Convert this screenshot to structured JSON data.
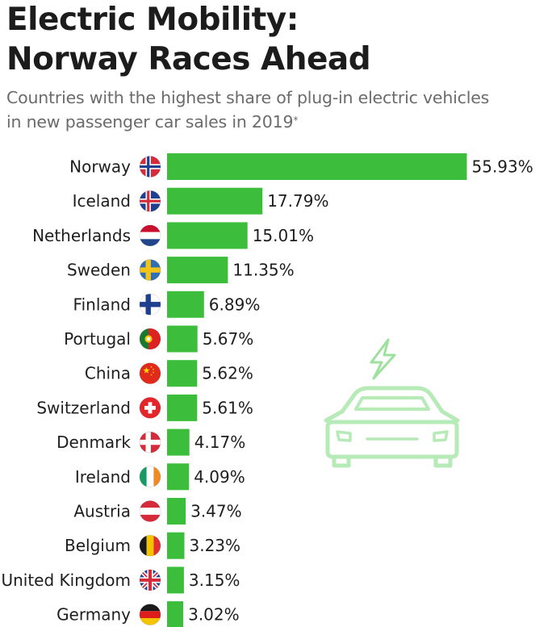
{
  "title_lines": [
    "Electric Mobility:",
    "Norway Races Ahead"
  ],
  "subtitle_lines": [
    "Countries with the highest share of plug-in electric vehicles",
    "in new passenger car sales in 2019"
  ],
  "subtitle_marker": "*",
  "colors": {
    "bar": "#3cbe3c",
    "car_icon": "#b6eab6",
    "bolt_icon": "#9ee09e"
  },
  "icons": {
    "car": "electric-car-icon",
    "bolt": "lightning-bolt-icon"
  },
  "chart_data": {
    "type": "bar",
    "orientation": "horizontal",
    "title": "Electric Mobility: Norway Races Ahead",
    "subtitle": "Countries with the highest share of plug-in electric vehicles in new passenger car sales in 2019*",
    "value_suffix": "%",
    "grid": false,
    "xlim": [
      0,
      56
    ],
    "categories": [
      "Norway",
      "Iceland",
      "Netherlands",
      "Sweden",
      "Finland",
      "Portugal",
      "China",
      "Switzerland",
      "Denmark",
      "Ireland",
      "Austria",
      "Belgium",
      "United Kingdom",
      "Germany"
    ],
    "values": [
      55.93,
      17.79,
      15.01,
      11.35,
      6.89,
      5.67,
      5.62,
      5.61,
      4.17,
      4.09,
      3.47,
      3.23,
      3.15,
      3.02
    ],
    "value_labels": [
      "55.93%",
      "17.79%",
      "15.01%",
      "11.35%",
      "6.89%",
      "5.67%",
      "5.62%",
      "5.61%",
      "4.17%",
      "4.09%",
      "3.47%",
      "3.23%",
      "3.15%",
      "3.02%"
    ],
    "flags": [
      "norway-flag-icon",
      "iceland-flag-icon",
      "netherlands-flag-icon",
      "sweden-flag-icon",
      "finland-flag-icon",
      "portugal-flag-icon",
      "china-flag-icon",
      "switzerland-flag-icon",
      "denmark-flag-icon",
      "ireland-flag-icon",
      "austria-flag-icon",
      "belgium-flag-icon",
      "united-kingdom-flag-icon",
      "germany-flag-icon"
    ]
  }
}
